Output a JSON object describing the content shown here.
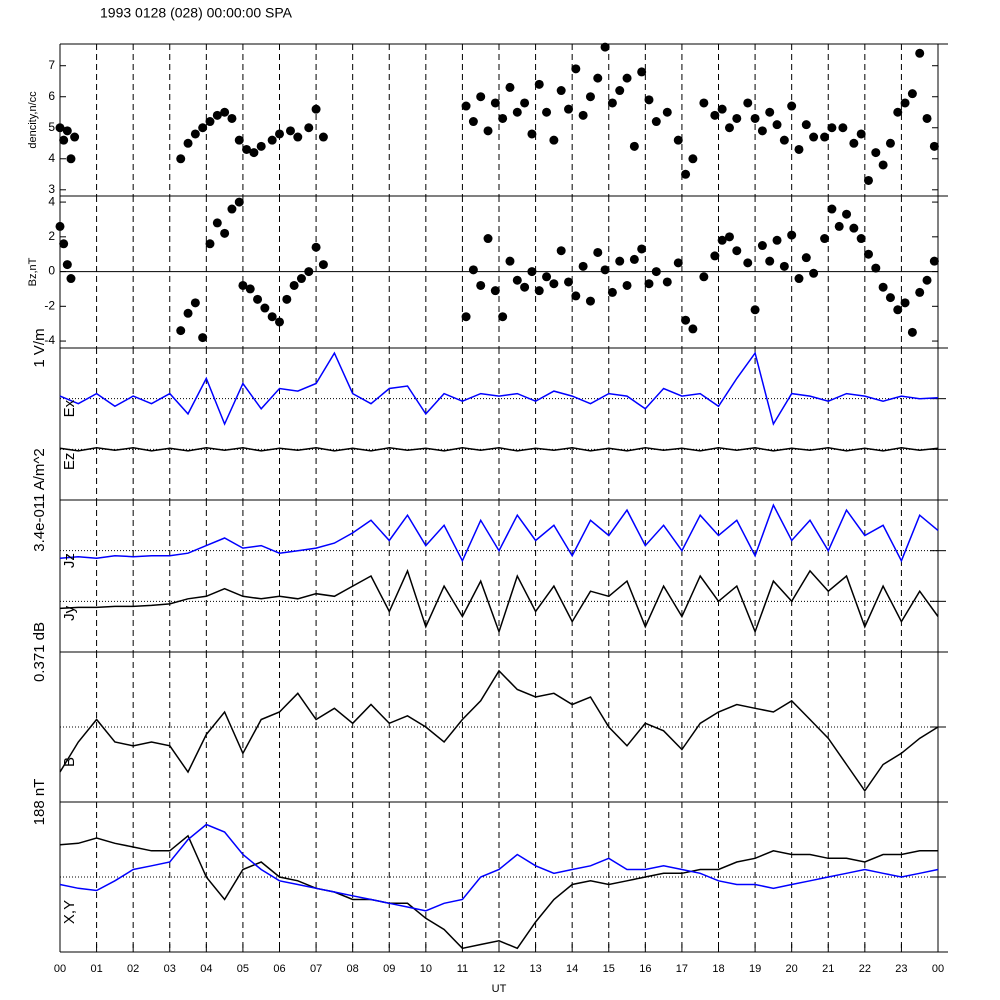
{
  "chart_data": [
    {
      "type": "scatter",
      "title": "1993 0128 (028) 00:00:00 SPA",
      "ylabel": "dencity,n/cc",
      "color": "#000000",
      "xlim": [
        0,
        24
      ],
      "ylim": [
        2.8,
        7.7
      ],
      "yticks": [
        3,
        4,
        5,
        6,
        7
      ],
      "x": [
        0.0,
        0.1,
        0.2,
        0.3,
        0.4,
        3.3,
        3.5,
        3.7,
        3.9,
        4.1,
        4.3,
        4.5,
        4.7,
        4.9,
        5.1,
        5.3,
        5.5,
        5.8,
        6.0,
        6.3,
        6.5,
        6.8,
        7.0,
        7.2,
        11.1,
        11.3,
        11.5,
        11.7,
        11.9,
        12.1,
        12.3,
        12.5,
        12.7,
        12.9,
        13.1,
        13.3,
        13.5,
        13.7,
        13.9,
        14.1,
        14.3,
        14.5,
        14.7,
        14.9,
        15.1,
        15.3,
        15.5,
        15.7,
        15.9,
        16.1,
        16.3,
        16.6,
        16.9,
        17.1,
        17.3,
        17.6,
        17.9,
        18.1,
        18.3,
        18.5,
        18.8,
        19.0,
        19.2,
        19.4,
        19.6,
        19.8,
        20.0,
        20.2,
        20.4,
        20.6,
        20.9,
        21.1,
        21.4,
        21.7,
        21.9,
        22.1,
        22.3,
        22.5,
        22.7,
        22.9,
        23.1,
        23.3,
        23.5,
        23.7,
        23.9
      ],
      "values": [
        5.0,
        4.6,
        4.9,
        4.0,
        4.7,
        4.0,
        4.5,
        4.8,
        5.0,
        5.2,
        5.4,
        5.5,
        5.3,
        4.6,
        4.3,
        4.2,
        4.4,
        4.6,
        4.8,
        4.9,
        4.7,
        5.0,
        5.6,
        4.7,
        5.7,
        5.2,
        6.0,
        4.9,
        5.8,
        5.3,
        6.3,
        5.5,
        5.8,
        4.8,
        6.4,
        5.5,
        4.6,
        6.2,
        5.6,
        6.9,
        5.4,
        6.0,
        6.6,
        7.6,
        5.8,
        6.2,
        6.6,
        4.4,
        6.8,
        5.9,
        5.2,
        5.5,
        4.6,
        3.5,
        4.0,
        5.8,
        5.4,
        5.6,
        5.0,
        5.3,
        5.8,
        5.3,
        4.9,
        5.5,
        5.1,
        4.6,
        5.7,
        4.3,
        5.1,
        4.7,
        4.7,
        5.0,
        5.0,
        4.5,
        4.8,
        3.3,
        4.2,
        3.8,
        4.5,
        5.5,
        5.8,
        6.1,
        7.4,
        5.3,
        4.4
      ]
    },
    {
      "type": "scatter",
      "ylabel": "Bz,nT",
      "color": "#000000",
      "zero_line": true,
      "xlim": [
        0,
        24
      ],
      "ylim": [
        -4.4,
        4.35
      ],
      "yticks": [
        -4,
        -2,
        0,
        2,
        4
      ],
      "x": [
        0.0,
        0.1,
        0.2,
        0.3,
        3.3,
        3.5,
        3.7,
        3.9,
        4.1,
        4.3,
        4.5,
        4.7,
        4.9,
        5.0,
        5.2,
        5.4,
        5.6,
        5.8,
        6.0,
        6.2,
        6.4,
        6.6,
        6.8,
        7.0,
        7.2,
        11.1,
        11.3,
        11.5,
        11.7,
        11.9,
        12.1,
        12.3,
        12.5,
        12.7,
        12.9,
        13.1,
        13.3,
        13.5,
        13.7,
        13.9,
        14.1,
        14.3,
        14.5,
        14.7,
        14.9,
        15.1,
        15.3,
        15.5,
        15.7,
        15.9,
        16.1,
        16.3,
        16.6,
        16.9,
        17.1,
        17.3,
        17.6,
        17.9,
        18.1,
        18.3,
        18.5,
        18.8,
        19.0,
        19.2,
        19.4,
        19.6,
        19.8,
        20.0,
        20.2,
        20.4,
        20.6,
        20.9,
        21.1,
        21.3,
        21.5,
        21.7,
        21.9,
        22.1,
        22.3,
        22.5,
        22.7,
        22.9,
        23.1,
        23.3,
        23.5,
        23.7,
        23.9
      ],
      "values": [
        2.6,
        1.6,
        0.4,
        -0.4,
        -3.4,
        -2.4,
        -1.8,
        -3.8,
        1.6,
        2.8,
        2.2,
        3.6,
        4.0,
        -0.8,
        -1.0,
        -1.6,
        -2.1,
        -2.6,
        -2.9,
        -1.6,
        -0.8,
        -0.4,
        0.0,
        1.4,
        0.4,
        -2.6,
        0.1,
        -0.8,
        1.9,
        -1.1,
        -2.6,
        0.6,
        -0.5,
        -0.9,
        0.0,
        -1.1,
        -0.3,
        -0.7,
        1.2,
        -0.6,
        -1.4,
        0.3,
        -1.7,
        1.1,
        0.1,
        -1.2,
        0.6,
        -0.8,
        0.7,
        1.3,
        -0.7,
        0.0,
        -0.6,
        0.5,
        -2.8,
        -3.3,
        -0.3,
        0.9,
        1.8,
        2.0,
        1.2,
        0.5,
        -2.2,
        1.5,
        0.6,
        1.8,
        0.3,
        2.1,
        -0.4,
        0.8,
        -0.1,
        1.9,
        3.6,
        2.6,
        3.3,
        2.5,
        1.9,
        1.0,
        0.2,
        -0.9,
        -1.5,
        -2.2,
        -1.8,
        -3.5,
        -1.2,
        -0.5,
        0.6
      ]
    },
    {
      "type": "line",
      "scale_label": "1 V/m",
      "xlim": [
        0,
        24
      ],
      "x": [
        0,
        0.5,
        1,
        1.5,
        2,
        2.5,
        3,
        3.5,
        4,
        4.5,
        5,
        5.5,
        6,
        6.5,
        7,
        7.5,
        8,
        8.5,
        9,
        9.5,
        10,
        10.5,
        11,
        11.5,
        12,
        12.5,
        13,
        13.5,
        14,
        14.5,
        15,
        15.5,
        16,
        16.5,
        17,
        17.5,
        18,
        18.5,
        19,
        19.5,
        20,
        20.5,
        21,
        21.5,
        22,
        22.5,
        23,
        23.5,
        24
      ],
      "series": [
        {
          "name": "Ex",
          "color": "#0000ff",
          "ylim": [
            -2,
            1
          ],
          "values": [
            0.05,
            -0.1,
            0.1,
            -0.15,
            0.05,
            -0.1,
            0.1,
            -0.3,
            0.4,
            -0.5,
            0.3,
            -0.2,
            0.2,
            0.15,
            0.3,
            0.9,
            0.1,
            -0.1,
            0.2,
            0.25,
            -0.3,
            0.1,
            -0.05,
            0.1,
            0.05,
            0.1,
            -0.05,
            0.15,
            0.05,
            -0.1,
            0.1,
            0.05,
            -0.2,
            0.2,
            0.05,
            0.1,
            -0.15,
            0.4,
            0.9,
            -0.5,
            0.1,
            0.05,
            -0.05,
            0.1,
            0.05,
            -0.05,
            0.05,
            0.0,
            0.02
          ]
        },
        {
          "name": "Ez",
          "color": "#000000",
          "ylim": [
            -1,
            2
          ],
          "values": [
            0.02,
            -0.03,
            0.03,
            -0.02,
            0.03,
            -0.03,
            0.02,
            -0.03,
            0.03,
            -0.02,
            0.03,
            -0.03,
            0.02,
            -0.02,
            0.03,
            -0.03,
            0.02,
            -0.03,
            0.03,
            -0.02,
            0.02,
            -0.03,
            0.03,
            -0.02,
            0.03,
            -0.03,
            0.02,
            -0.02,
            0.03,
            -0.03,
            0.02,
            -0.03,
            0.03,
            -0.02,
            0.02,
            -0.03,
            0.03,
            -0.02,
            0.03,
            -0.03,
            0.02,
            -0.02,
            0.03,
            -0.03,
            0.02,
            -0.03,
            0.03,
            -0.02,
            0.02
          ]
        }
      ]
    },
    {
      "type": "line",
      "scale_label": "3.4e-011 A/m^2",
      "xlim": [
        0,
        24
      ],
      "x": [
        0,
        0.5,
        1,
        1.5,
        2,
        2.5,
        3,
        3.5,
        4,
        4.5,
        5,
        5.5,
        6,
        6.5,
        7,
        7.5,
        8,
        8.5,
        9,
        9.5,
        10,
        10.5,
        11,
        11.5,
        12,
        12.5,
        13,
        13.5,
        14,
        14.5,
        15,
        15.5,
        16,
        16.5,
        17,
        17.5,
        18,
        18.5,
        19,
        19.5,
        20,
        20.5,
        21,
        21.5,
        22,
        22.5,
        23,
        23.5,
        24
      ],
      "series": [
        {
          "name": "Jz",
          "color": "#0000ff",
          "ylim": [
            -2,
            1
          ],
          "values": [
            -0.15,
            -0.12,
            -0.15,
            -0.1,
            -0.12,
            -0.1,
            -0.1,
            -0.05,
            0.1,
            0.25,
            0.05,
            0.1,
            -0.05,
            0.0,
            0.05,
            0.15,
            0.35,
            0.6,
            0.2,
            0.7,
            0.1,
            0.5,
            -0.2,
            0.6,
            0.0,
            0.7,
            0.2,
            0.5,
            -0.1,
            0.6,
            0.3,
            0.8,
            0.1,
            0.5,
            0.0,
            0.7,
            0.3,
            0.6,
            -0.1,
            0.9,
            0.2,
            0.6,
            0.0,
            0.8,
            0.3,
            0.5,
            -0.2,
            0.7,
            0.4
          ]
        },
        {
          "name": "Jy",
          "color": "#000000",
          "ylim": [
            -1,
            2
          ],
          "values": [
            -0.14,
            -0.12,
            -0.12,
            -0.1,
            -0.1,
            -0.08,
            -0.05,
            0.05,
            0.1,
            0.25,
            0.1,
            0.05,
            0.1,
            0.05,
            0.15,
            0.1,
            0.3,
            0.5,
            -0.2,
            0.6,
            -0.5,
            0.3,
            -0.3,
            0.4,
            -0.6,
            0.5,
            -0.2,
            0.3,
            -0.4,
            0.2,
            0.1,
            0.4,
            -0.5,
            0.3,
            -0.3,
            0.5,
            0.0,
            0.3,
            -0.6,
            0.4,
            0.0,
            0.6,
            0.2,
            0.5,
            -0.5,
            0.3,
            -0.4,
            0.2,
            -0.3
          ]
        }
      ]
    },
    {
      "type": "line",
      "scale_label": "0.371 dB",
      "ylabel": "B",
      "xlim": [
        0,
        24
      ],
      "x": [
        0,
        0.5,
        1,
        1.5,
        2,
        2.5,
        3,
        3.5,
        4,
        4.5,
        5,
        5.5,
        6,
        6.5,
        7,
        7.5,
        8,
        8.5,
        9,
        9.5,
        10,
        10.5,
        11,
        11.5,
        12,
        12.5,
        13,
        13.5,
        14,
        14.5,
        15,
        15.5,
        16,
        16.5,
        17,
        17.5,
        18,
        18.5,
        19,
        19.5,
        20,
        20.5,
        21,
        21.5,
        22,
        22.5,
        23,
        23.5,
        24
      ],
      "series": [
        {
          "color": "#000000",
          "ylim": [
            -1,
            1
          ],
          "values": [
            -0.6,
            -0.2,
            0.1,
            -0.2,
            -0.25,
            -0.2,
            -0.25,
            -0.6,
            -0.1,
            0.2,
            -0.35,
            0.1,
            0.2,
            0.45,
            0.1,
            0.25,
            0.05,
            0.3,
            0.05,
            0.15,
            0.0,
            -0.2,
            0.1,
            0.35,
            0.75,
            0.5,
            0.4,
            0.45,
            0.3,
            0.4,
            0.0,
            -0.25,
            0.05,
            -0.05,
            -0.3,
            0.05,
            0.2,
            0.3,
            0.25,
            0.2,
            0.35,
            0.1,
            -0.15,
            -0.5,
            -0.85,
            -0.5,
            -0.35,
            -0.15,
            0.0
          ]
        }
      ]
    },
    {
      "type": "line",
      "scale_label": "188 nT",
      "ylabel": "X,Y",
      "xlabel": "UT",
      "xlim": [
        0,
        24
      ],
      "xticks": [
        {
          "value": 0,
          "label": "00"
        },
        {
          "value": 1,
          "label": "01"
        },
        {
          "value": 2,
          "label": "02"
        },
        {
          "value": 3,
          "label": "03"
        },
        {
          "value": 4,
          "label": "04"
        },
        {
          "value": 5,
          "label": "05"
        },
        {
          "value": 6,
          "label": "06"
        },
        {
          "value": 7,
          "label": "07"
        },
        {
          "value": 8,
          "label": "08"
        },
        {
          "value": 9,
          "label": "09"
        },
        {
          "value": 10,
          "label": "10"
        },
        {
          "value": 11,
          "label": "11"
        },
        {
          "value": 12,
          "label": "12"
        },
        {
          "value": 13,
          "label": "13"
        },
        {
          "value": 14,
          "label": "14"
        },
        {
          "value": 15,
          "label": "15"
        },
        {
          "value": 16,
          "label": "16"
        },
        {
          "value": 17,
          "label": "17"
        },
        {
          "value": 18,
          "label": "18"
        },
        {
          "value": 19,
          "label": "19"
        },
        {
          "value": 20,
          "label": "20"
        },
        {
          "value": 21,
          "label": "21"
        },
        {
          "value": 22,
          "label": "22"
        },
        {
          "value": 23,
          "label": "23"
        },
        {
          "value": 24,
          "label": "00"
        }
      ],
      "x": [
        0,
        0.5,
        1,
        1.5,
        2,
        2.5,
        3,
        3.5,
        4,
        4.5,
        5,
        5.5,
        6,
        6.5,
        7,
        7.5,
        8,
        8.5,
        9,
        9.5,
        10,
        10.5,
        11,
        11.5,
        12,
        12.5,
        13,
        13.5,
        14,
        14.5,
        15,
        15.5,
        16,
        16.5,
        17,
        17.5,
        18,
        18.5,
        19,
        19.5,
        20,
        20.5,
        21,
        21.5,
        22,
        22.5,
        23,
        23.5,
        24
      ],
      "series": [
        {
          "color": "#000000",
          "ylim": [
            -1,
            1
          ],
          "values": [
            0.43,
            0.45,
            0.52,
            0.45,
            0.4,
            0.35,
            0.35,
            0.55,
            0.0,
            -0.3,
            0.1,
            0.2,
            0.0,
            -0.05,
            -0.15,
            -0.2,
            -0.3,
            -0.3,
            -0.35,
            -0.35,
            -0.55,
            -0.7,
            -0.95,
            -0.9,
            -0.85,
            -0.95,
            -0.6,
            -0.3,
            -0.1,
            -0.05,
            -0.1,
            -0.05,
            0.0,
            0.05,
            0.05,
            0.1,
            0.1,
            0.2,
            0.25,
            0.35,
            0.3,
            0.3,
            0.25,
            0.25,
            0.2,
            0.3,
            0.3,
            0.35,
            0.35
          ]
        },
        {
          "color": "#0000ff",
          "ylim": [
            -1,
            1
          ],
          "values": [
            -0.1,
            -0.15,
            -0.18,
            -0.05,
            0.1,
            0.15,
            0.2,
            0.5,
            0.7,
            0.6,
            0.3,
            0.1,
            -0.05,
            -0.1,
            -0.15,
            -0.2,
            -0.25,
            -0.3,
            -0.35,
            -0.4,
            -0.45,
            -0.35,
            -0.3,
            0.0,
            0.1,
            0.3,
            0.15,
            0.05,
            0.1,
            0.15,
            0.25,
            0.1,
            0.1,
            0.15,
            0.1,
            0.05,
            -0.05,
            -0.1,
            -0.1,
            -0.15,
            -0.1,
            -0.05,
            0.0,
            0.05,
            0.1,
            0.05,
            0.0,
            0.05,
            0.1
          ]
        }
      ]
    }
  ]
}
